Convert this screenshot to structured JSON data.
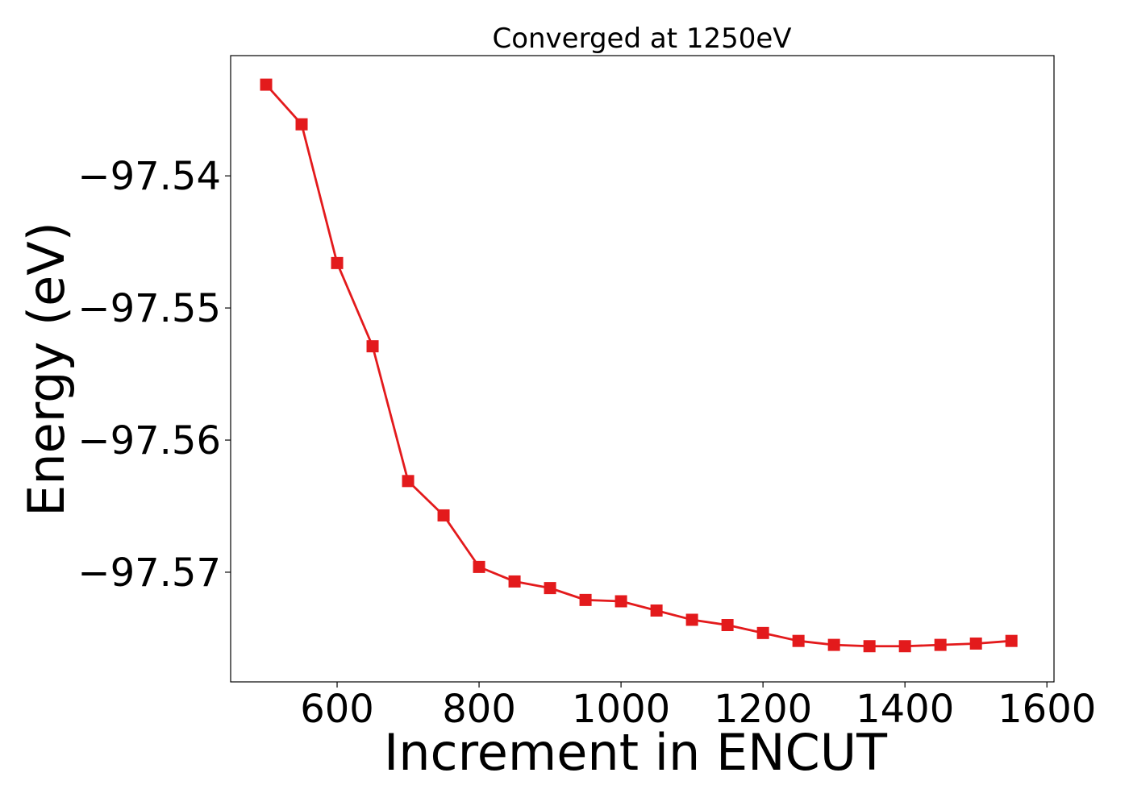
{
  "chart_data": {
    "type": "line",
    "title": "Converged at 1250eV",
    "xlabel": "Increment in ENCUT",
    "ylabel": "Energy (eV)",
    "xlim": [
      450,
      1610
    ],
    "ylim": [
      -97.5783,
      -97.5309
    ],
    "xticks": [
      600,
      800,
      1000,
      1200,
      1400,
      1600
    ],
    "xtick_labels": [
      "600",
      "800",
      "1000",
      "1200",
      "1400",
      "1600"
    ],
    "yticks": [
      -97.54,
      -97.55,
      -97.56,
      -97.57
    ],
    "ytick_labels": [
      "−97.54",
      "−97.55",
      "−97.56",
      "−97.57"
    ],
    "grid": false,
    "series": [
      {
        "color": "#e31a1c",
        "marker": "square",
        "x": [
          500,
          550,
          600,
          650,
          700,
          750,
          800,
          850,
          900,
          950,
          1000,
          1050,
          1100,
          1150,
          1200,
          1250,
          1300,
          1350,
          1400,
          1450,
          1500,
          1550
        ],
        "y": [
          -97.5331,
          -97.5361,
          -97.5466,
          -97.5529,
          -97.5631,
          -97.5657,
          -97.5696,
          -97.5707,
          -97.5712,
          -97.5721,
          -97.5722,
          -97.5729,
          -97.5736,
          -97.574,
          -97.5746,
          -97.5752,
          -97.5755,
          -97.5756,
          -97.5756,
          -97.5755,
          -97.5754,
          -97.5752
        ]
      }
    ]
  }
}
